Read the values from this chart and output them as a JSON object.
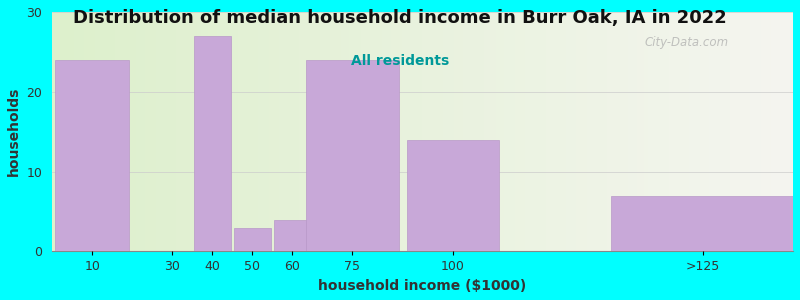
{
  "title": "Distribution of median household income in Burr Oak, IA in 2022",
  "subtitle": "All residents",
  "xlabel": "household income ($1000)",
  "ylabel": "households",
  "bar_centers": [
    10,
    30,
    40,
    50,
    60,
    75,
    100,
    162.5
  ],
  "bar_widths": [
    20,
    20,
    10,
    10,
    10,
    25,
    25,
    50
  ],
  "values": [
    24,
    0,
    27,
    3,
    4,
    24,
    14,
    7
  ],
  "xtick_positions": [
    10,
    30,
    40,
    50,
    60,
    75,
    100,
    162.5
  ],
  "xtick_labels": [
    "10",
    "30",
    "40",
    "50",
    "60",
    "75",
    "100",
    ">125"
  ],
  "bar_color": "#c8a8d8",
  "bar_edge_color": "#b898c8",
  "background_color": "#00FFFF",
  "plot_bg_left": "#ddf0cc",
  "plot_bg_right": "#f5f5f0",
  "title_fontsize": 13,
  "subtitle_fontsize": 10,
  "subtitle_color": "#009999",
  "ylabel_color": "#333333",
  "xlabel_color": "#333333",
  "tick_color": "#333333",
  "ylim": [
    0,
    30
  ],
  "xlim": [
    0,
    185
  ],
  "yticks": [
    0,
    10,
    20,
    30
  ],
  "watermark": "City-Data.com"
}
